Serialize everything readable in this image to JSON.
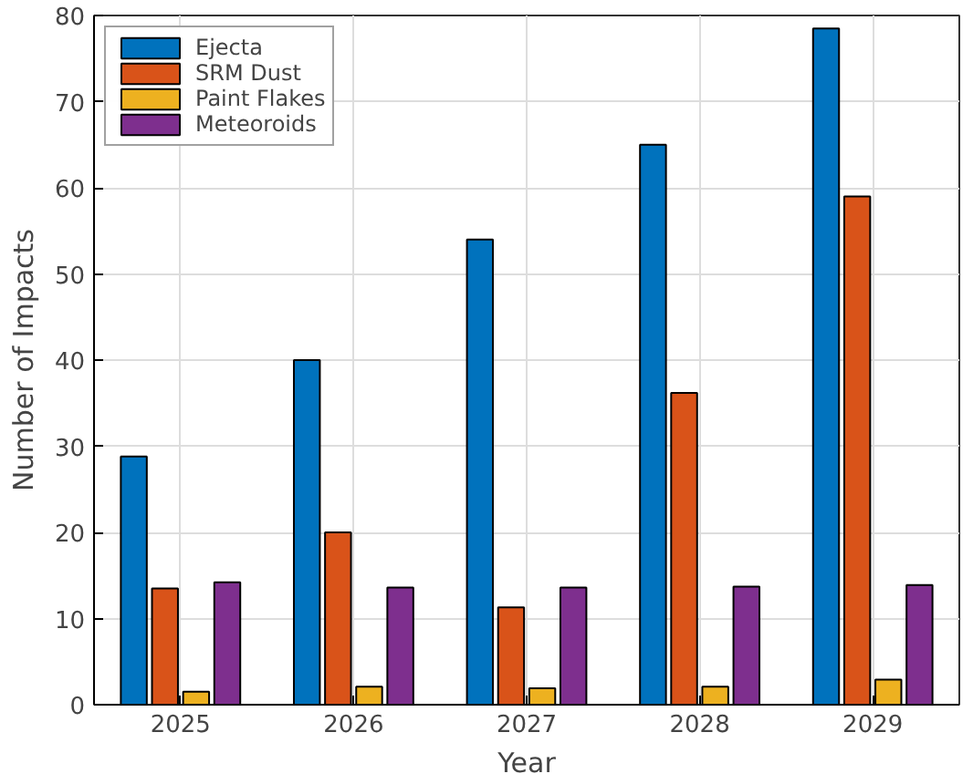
{
  "chart_data": {
    "type": "bar",
    "xlabel": "Year",
    "ylabel": "Number of Impacts",
    "categories": [
      "2025",
      "2026",
      "2027",
      "2028",
      "2029"
    ],
    "series": [
      {
        "name": "Ejecta",
        "color": "#0072bd",
        "values": [
          28.8,
          40,
          54,
          65,
          78.5
        ]
      },
      {
        "name": "SRM Dust",
        "color": "#d95319",
        "values": [
          13.5,
          20,
          11.3,
          36.2,
          59
        ]
      },
      {
        "name": "Paint Flakes",
        "color": "#edb120",
        "values": [
          1.5,
          2.1,
          1.9,
          2.1,
          2.9
        ]
      },
      {
        "name": "Meteoroids",
        "color": "#7e2f8e",
        "values": [
          14.2,
          13.6,
          13.6,
          13.7,
          13.9
        ]
      }
    ],
    "ylim": [
      0,
      80
    ],
    "yticks": [
      0,
      10,
      20,
      30,
      40,
      50,
      60,
      70,
      80
    ],
    "grid": true,
    "legend": "top left"
  }
}
